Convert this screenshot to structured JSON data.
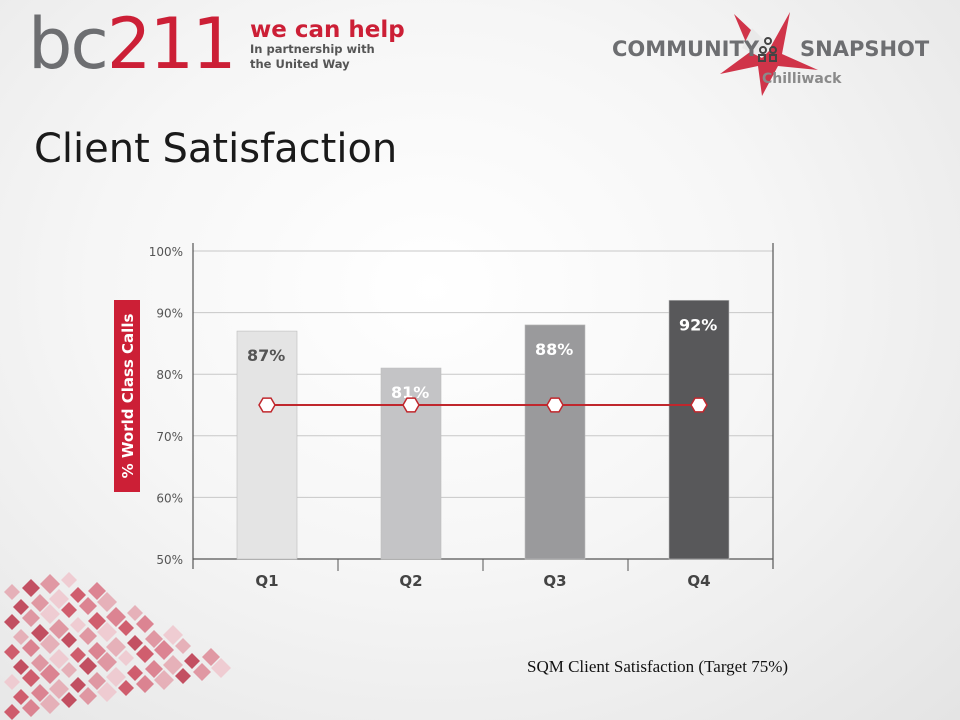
{
  "branding": {
    "bc_prefix": "bc",
    "bc_number": "211",
    "tagline_main": "we can help",
    "tagline_line1": "In partnership with",
    "tagline_line2": "the United Way",
    "snapshot_left": "COMMUNITY",
    "snapshot_right": "SNAPSHOT",
    "snapshot_location": "Chilliwack"
  },
  "slide": {
    "title": "Client Satisfaction",
    "caption": "SQM Client Satisfaction (Target 75%)"
  },
  "colors": {
    "brand_red": "#cc1f36",
    "target_line": "#c0272d",
    "grid": "#c8c8c8",
    "bar_colors": [
      "#e4e4e4",
      "#c4c4c6",
      "#9a9a9c",
      "#58585a"
    ]
  },
  "chart_data": {
    "type": "bar",
    "categories": [
      "Q1",
      "Q2",
      "Q3",
      "Q4"
    ],
    "values": [
      87,
      81,
      88,
      92
    ],
    "data_labels": [
      "87%",
      "81%",
      "88%",
      "92%"
    ],
    "target": 75,
    "ylabel": "% World Class Calls",
    "ylim": [
      50,
      100
    ],
    "yticks": [
      50,
      60,
      70,
      80,
      90,
      100
    ],
    "ytick_labels": [
      "50%",
      "60%",
      "70%",
      "80%",
      "90%",
      "100%"
    ],
    "grid": true,
    "legend": "none"
  }
}
